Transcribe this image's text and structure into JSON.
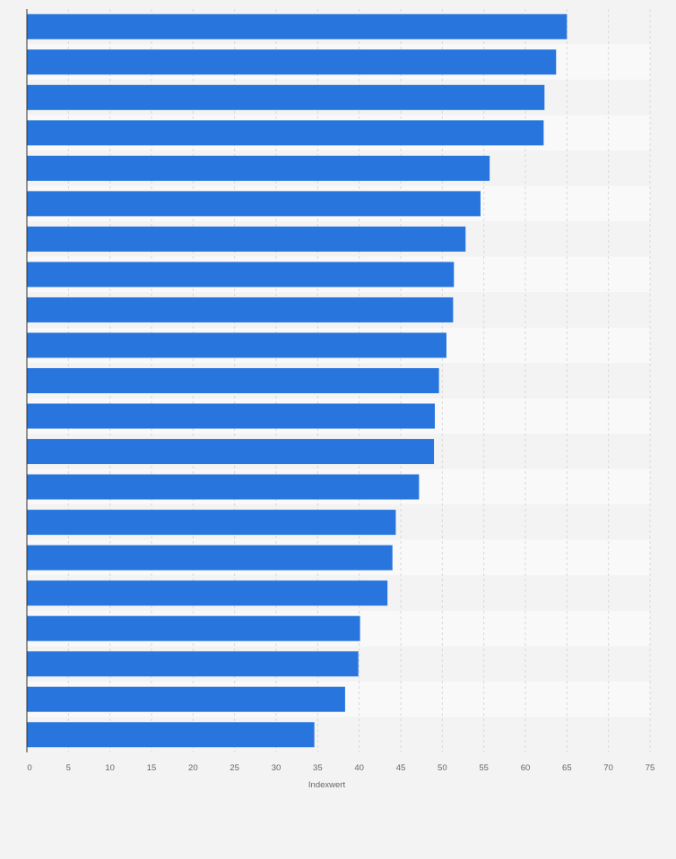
{
  "chart_data": {
    "type": "bar",
    "orientation": "horizontal",
    "categories": [
      "",
      "",
      "",
      "",
      "",
      "",
      "",
      "",
      "",
      "",
      "",
      "",
      "",
      "",
      "",
      "",
      "",
      "",
      "",
      "",
      ""
    ],
    "values": [
      65,
      63.7,
      62.3,
      62.2,
      55.7,
      54.6,
      52.8,
      51.4,
      51.3,
      50.5,
      49.6,
      49.1,
      49.0,
      47.2,
      44.4,
      44.0,
      43.4,
      40.1,
      39.9,
      38.3,
      34.6
    ],
    "xlabel": "Indexwert",
    "xlim": [
      0,
      75
    ],
    "xticks": [
      0,
      5,
      10,
      15,
      20,
      25,
      30,
      35,
      40,
      45,
      50,
      55,
      60,
      65,
      70,
      75
    ],
    "grid": true,
    "colors": {
      "bar": "#2876dd",
      "background": "#f3f3f3",
      "band_light": "#f9f9f9",
      "band_dark": "#f3f3f3",
      "grid": "#d9d9d9",
      "axis": "#333333"
    }
  }
}
